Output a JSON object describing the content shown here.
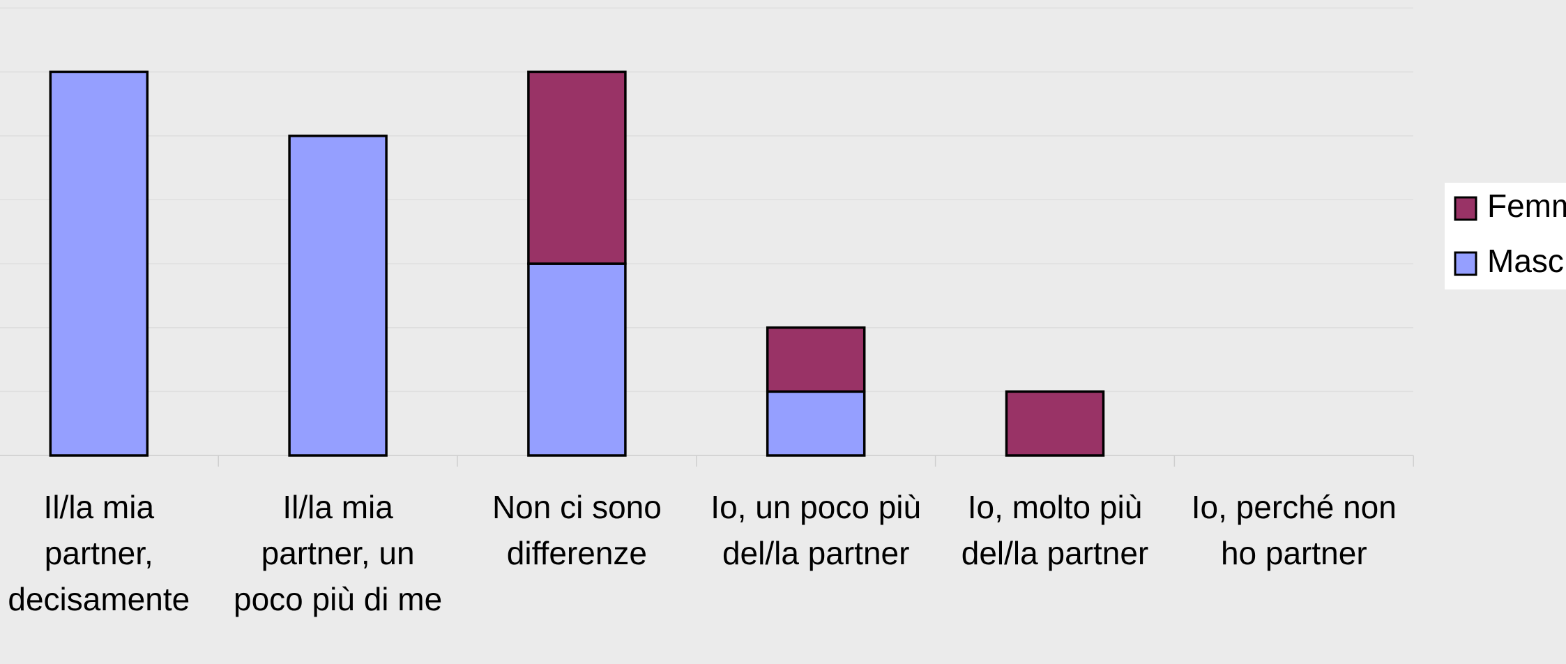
{
  "chart_data": {
    "type": "stacked_bar",
    "categories": [
      "Il/la mia partner, decisamente",
      "Il/la mia partner, un poco più di me",
      "Non ci sono differenze",
      "Io, un poco più del/la partner",
      "Io, molto più del/la partner",
      "Io, perché non ho partner"
    ],
    "series": [
      {
        "name": "Maschi",
        "color": "#959fff",
        "values": [
          6,
          5,
          3,
          1,
          0,
          0
        ]
      },
      {
        "name": "Femmine",
        "color": "#993366",
        "values": [
          0,
          0,
          3,
          1,
          1,
          0
        ]
      }
    ],
    "ylim": [
      0,
      7
    ],
    "yticks": [
      0,
      1,
      2,
      3,
      4,
      5,
      6,
      7
    ],
    "grid": true,
    "legend": "right"
  }
}
